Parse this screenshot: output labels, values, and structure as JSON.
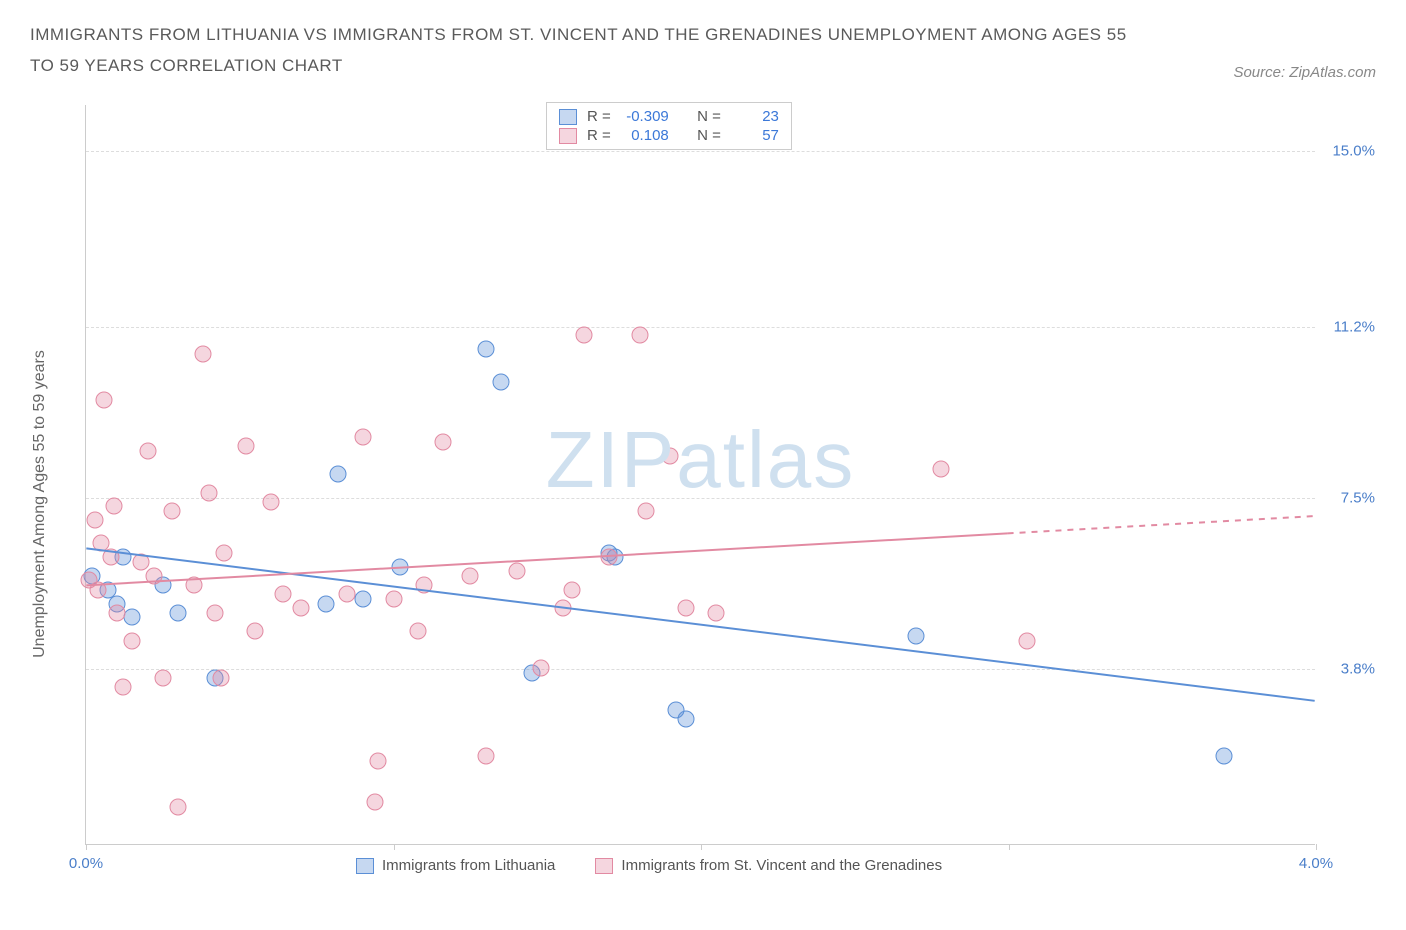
{
  "title": "IMMIGRANTS FROM LITHUANIA VS IMMIGRANTS FROM ST. VINCENT AND THE GRENADINES UNEMPLOYMENT AMONG AGES 55 TO 59 YEARS CORRELATION CHART",
  "source": "Source: ZipAtlas.com",
  "watermark_a": "ZIP",
  "watermark_b": "atlas",
  "y_axis_label": "Unemployment Among Ages 55 to 59 years",
  "chart": {
    "type": "scatter",
    "background_color": "#ffffff",
    "grid_color": "#dddddd",
    "axis_color": "#cccccc",
    "x_domain": [
      0.0,
      4.0
    ],
    "y_domain": [
      0.0,
      16.0
    ],
    "x_ticks": [
      0.0,
      1.0,
      2.0,
      3.0,
      4.0
    ],
    "x_tick_labels": [
      "0.0%",
      "",
      "",
      "",
      "4.0%"
    ],
    "y_ticks": [
      3.8,
      7.5,
      11.2,
      15.0
    ],
    "y_tick_labels": [
      "3.8%",
      "7.5%",
      "11.2%",
      "15.0%"
    ],
    "marker_radius": 8.5,
    "marker_opacity": 0.55,
    "line_width": 2
  },
  "series": [
    {
      "name": "Immigrants from Lithuania",
      "color": "#5b8fd6",
      "fill": "rgba(91,143,214,0.35)",
      "r": "-0.309",
      "n": "23",
      "trend": {
        "x1": 0.0,
        "y1": 6.4,
        "x2": 4.0,
        "y2": 3.1,
        "dash_from_x": null
      },
      "points": [
        [
          0.02,
          5.8
        ],
        [
          0.07,
          5.5
        ],
        [
          0.1,
          5.2
        ],
        [
          0.12,
          6.2
        ],
        [
          0.15,
          4.9
        ],
        [
          0.25,
          5.6
        ],
        [
          0.3,
          5.0
        ],
        [
          0.42,
          3.6
        ],
        [
          0.78,
          5.2
        ],
        [
          0.82,
          8.0
        ],
        [
          0.9,
          5.3
        ],
        [
          1.02,
          6.0
        ],
        [
          1.3,
          10.7
        ],
        [
          1.35,
          10.0
        ],
        [
          1.45,
          3.7
        ],
        [
          1.7,
          6.3
        ],
        [
          1.72,
          6.2
        ],
        [
          1.92,
          2.9
        ],
        [
          1.95,
          2.7
        ],
        [
          2.7,
          4.5
        ],
        [
          3.7,
          1.9
        ]
      ]
    },
    {
      "name": "Immigrants from St. Vincent and the Grenadines",
      "color": "#e28aa2",
      "fill": "rgba(226,138,162,0.35)",
      "r": "0.108",
      "n": "57",
      "trend": {
        "x1": 0.0,
        "y1": 5.6,
        "x2": 4.0,
        "y2": 7.1,
        "dash_from_x": 3.0
      },
      "points": [
        [
          0.01,
          5.7
        ],
        [
          0.03,
          7.0
        ],
        [
          0.04,
          5.5
        ],
        [
          0.05,
          6.5
        ],
        [
          0.06,
          9.6
        ],
        [
          0.08,
          6.2
        ],
        [
          0.09,
          7.3
        ],
        [
          0.1,
          5.0
        ],
        [
          0.12,
          3.4
        ],
        [
          0.15,
          4.4
        ],
        [
          0.18,
          6.1
        ],
        [
          0.2,
          8.5
        ],
        [
          0.22,
          5.8
        ],
        [
          0.25,
          3.6
        ],
        [
          0.28,
          7.2
        ],
        [
          0.3,
          0.8
        ],
        [
          0.35,
          5.6
        ],
        [
          0.38,
          10.6
        ],
        [
          0.4,
          7.6
        ],
        [
          0.42,
          5.0
        ],
        [
          0.44,
          3.6
        ],
        [
          0.45,
          6.3
        ],
        [
          0.52,
          8.6
        ],
        [
          0.55,
          4.6
        ],
        [
          0.6,
          7.4
        ],
        [
          0.64,
          5.4
        ],
        [
          0.7,
          5.1
        ],
        [
          0.85,
          5.4
        ],
        [
          0.9,
          8.8
        ],
        [
          0.94,
          0.9
        ],
        [
          0.95,
          1.8
        ],
        [
          1.0,
          5.3
        ],
        [
          1.08,
          4.6
        ],
        [
          1.1,
          5.6
        ],
        [
          1.16,
          8.7
        ],
        [
          1.25,
          5.8
        ],
        [
          1.3,
          1.9
        ],
        [
          1.4,
          5.9
        ],
        [
          1.48,
          3.8
        ],
        [
          1.55,
          5.1
        ],
        [
          1.58,
          5.5
        ],
        [
          1.62,
          11.0
        ],
        [
          1.7,
          6.2
        ],
        [
          1.8,
          11.0
        ],
        [
          1.82,
          7.2
        ],
        [
          1.9,
          8.4
        ],
        [
          1.95,
          5.1
        ],
        [
          2.05,
          5.0
        ],
        [
          2.78,
          8.1
        ],
        [
          3.06,
          4.4
        ]
      ]
    }
  ],
  "legend_top_labels": {
    "r": "R =",
    "n": "N ="
  }
}
